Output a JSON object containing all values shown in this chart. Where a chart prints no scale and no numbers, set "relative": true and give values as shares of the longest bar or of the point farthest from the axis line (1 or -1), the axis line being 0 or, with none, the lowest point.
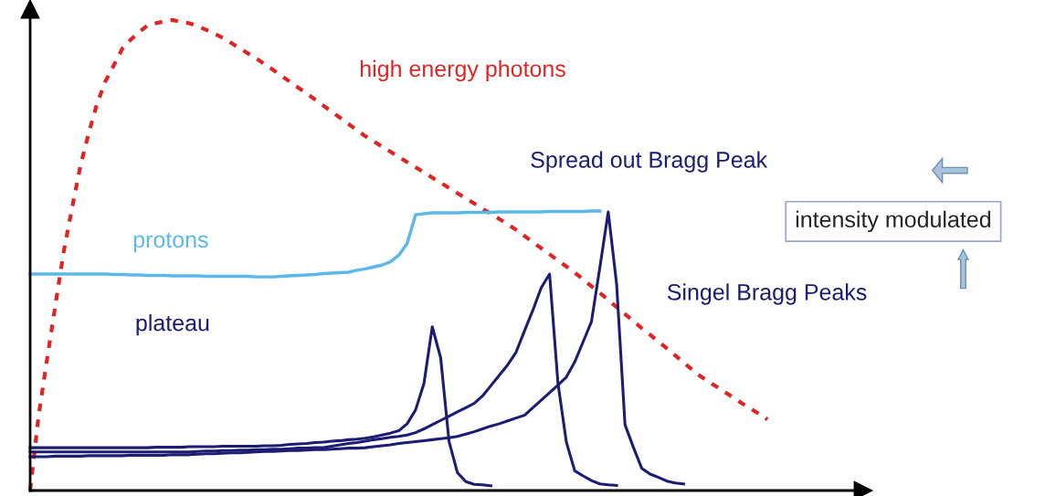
{
  "chart_data": {
    "type": "line",
    "relative": true,
    "annotations": [
      "Spread out Bragg Peak",
      "Singel Bragg Peaks",
      "plateau",
      "intensity modulated"
    ],
    "categories": [
      null,
      null,
      null,
      null,
      null,
      null,
      null,
      null,
      null,
      null,
      null,
      null,
      null,
      null,
      null,
      null,
      null,
      null,
      null,
      null,
      null,
      null,
      null,
      null,
      null,
      null,
      null,
      null,
      null,
      null,
      null,
      null,
      null,
      null,
      null,
      null,
      null,
      null,
      null,
      null,
      null,
      null,
      null,
      null,
      null,
      null,
      null,
      null,
      null,
      null,
      null,
      null,
      null,
      null,
      null,
      null,
      null,
      null,
      null,
      null,
      null,
      null,
      null,
      null,
      null,
      null,
      null,
      null,
      null,
      null,
      null,
      null,
      null,
      null,
      null,
      null,
      null,
      null,
      null,
      null,
      null,
      null,
      null,
      null,
      null,
      null,
      null,
      null,
      null
    ],
    "series": [
      {
        "name": "high energy photons",
        "color": "#e02424",
        "line_style": "dashed",
        "values": [
          0,
          0.157,
          0.277,
          0.392,
          0.507,
          0.6,
          0.69,
          0.76,
          0.823,
          0.87,
          0.904,
          0.939,
          0.958,
          0.974,
          0.988,
          0.993,
          0.997,
          1.0,
          0.996,
          0.993,
          0.987,
          0.979,
          0.971,
          0.962,
          0.951,
          0.94,
          0.929,
          0.918,
          0.906,
          0.894,
          0.881,
          0.869,
          0.856,
          0.844,
          0.831,
          0.818,
          0.805,
          0.792,
          0.779,
          0.766,
          0.753,
          0.742,
          0.731,
          0.72,
          0.709,
          0.698,
          0.687,
          0.676,
          0.665,
          0.654,
          0.643,
          0.632,
          0.621,
          0.61,
          0.599,
          0.588,
          0.577,
          0.566,
          0.554,
          0.541,
          0.528,
          0.515,
          0.502,
          0.489,
          0.476,
          0.463,
          0.449,
          0.434,
          0.42,
          0.405,
          0.39,
          0.375,
          0.36,
          0.345,
          0.331,
          0.316,
          0.302,
          0.287,
          0.272,
          0.257,
          0.243,
          0.231,
          0.22,
          0.208,
          0.197,
          0.185,
          0.174,
          0.163,
          0.151
        ]
      },
      {
        "name": "protons",
        "color": "#5bb8e8",
        "line_style": "solid",
        "values": [
          0.46,
          0.46,
          0.46,
          0.46,
          0.46,
          0.46,
          0.46,
          0.46,
          0.46,
          0.46,
          0.459,
          0.459,
          0.458,
          0.458,
          0.457,
          0.457,
          0.457,
          0.456,
          0.456,
          0.456,
          0.456,
          0.455,
          0.455,
          0.455,
          0.455,
          0.455,
          0.455,
          0.454,
          0.454,
          0.454,
          0.455,
          0.456,
          0.457,
          0.458,
          0.459,
          0.461,
          0.462,
          0.463,
          0.464,
          0.468,
          0.471,
          0.475,
          0.479,
          0.486,
          0.5,
          0.525,
          0.586,
          0.588,
          0.59,
          0.59,
          0.59,
          0.59,
          0.591,
          0.591,
          0.591,
          0.591,
          0.592,
          0.592,
          0.592,
          0.592,
          0.592,
          0.592,
          0.593,
          0.593,
          0.593,
          0.593,
          0.593,
          0.594,
          0.594,
          null,
          null,
          null,
          null,
          null,
          null,
          null,
          null,
          null,
          null,
          null,
          null,
          null,
          null,
          null,
          null,
          null,
          null,
          null,
          null
        ]
      },
      {
        "color": "#1c1c72",
        "line_style": "solid",
        "values": [
          0.091,
          0.091,
          0.091,
          0.091,
          0.091,
          0.091,
          0.091,
          0.091,
          0.091,
          0.091,
          0.091,
          0.091,
          0.091,
          0.091,
          0.091,
          0.092,
          0.092,
          0.092,
          0.092,
          0.093,
          0.093,
          0.093,
          0.093,
          0.094,
          0.094,
          0.094,
          0.094,
          0.094,
          0.095,
          0.095,
          0.096,
          0.098,
          0.099,
          0.1,
          0.102,
          0.103,
          0.105,
          0.106,
          0.108,
          0.109,
          0.111,
          0.114,
          0.118,
          0.122,
          0.127,
          0.142,
          0.171,
          0.227,
          0.348,
          0.282,
          0.104,
          0.038,
          0.019,
          0.013,
          0.012,
          0.01,
          null,
          null,
          null,
          null,
          null,
          null,
          null,
          null,
          null,
          null,
          null,
          null,
          null,
          null,
          null,
          null,
          null,
          null,
          null,
          null,
          null,
          null,
          null,
          null,
          null,
          null,
          null,
          null,
          null,
          null,
          null,
          null,
          null
        ]
      },
      {
        "color": "#1c1c72",
        "line_style": "solid",
        "values": [
          0.082,
          0.082,
          0.082,
          0.082,
          0.082,
          0.082,
          0.082,
          0.082,
          0.082,
          0.082,
          0.082,
          0.082,
          0.082,
          0.082,
          0.082,
          0.082,
          0.082,
          0.082,
          0.082,
          0.082,
          0.083,
          0.084,
          0.084,
          0.085,
          0.085,
          0.086,
          0.086,
          0.087,
          0.087,
          0.088,
          0.088,
          0.089,
          0.09,
          0.09,
          0.091,
          0.091,
          0.094,
          0.097,
          0.1,
          0.102,
          0.105,
          0.108,
          0.11,
          0.113,
          0.115,
          0.118,
          0.123,
          0.131,
          0.14,
          0.149,
          0.158,
          0.167,
          0.176,
          0.185,
          0.201,
          0.223,
          0.245,
          0.267,
          0.294,
          0.339,
          0.383,
          0.431,
          0.46,
          0.228,
          0.103,
          0.042,
          0.031,
          0.021,
          0.014,
          0.012,
          0.011,
          null,
          null,
          null,
          null,
          null,
          null,
          null,
          null,
          null,
          null,
          null,
          null,
          null,
          null,
          null,
          null,
          null,
          null
        ]
      },
      {
        "color": "#1c1c72",
        "line_style": "solid",
        "values": [
          0.072,
          0.072,
          0.072,
          0.073,
          0.073,
          0.073,
          0.073,
          0.074,
          0.074,
          0.074,
          0.074,
          0.074,
          0.075,
          0.075,
          0.075,
          0.075,
          0.075,
          0.076,
          0.076,
          0.076,
          0.077,
          0.078,
          0.078,
          0.079,
          0.08,
          0.08,
          0.081,
          0.082,
          0.083,
          0.083,
          0.084,
          0.085,
          0.085,
          0.086,
          0.087,
          0.087,
          0.088,
          0.089,
          0.09,
          0.09,
          0.091,
          0.093,
          0.095,
          0.097,
          0.1,
          0.102,
          0.104,
          0.106,
          0.108,
          0.11,
          0.112,
          0.115,
          0.12,
          0.125,
          0.131,
          0.137,
          0.142,
          0.148,
          0.154,
          0.16,
          0.176,
          0.192,
          0.208,
          0.224,
          0.241,
          0.273,
          0.316,
          0.359,
          0.474,
          0.592,
          0.439,
          0.14,
          0.092,
          0.047,
          0.035,
          0.028,
          0.02,
          0.016,
          0.014,
          null,
          null,
          null,
          null,
          null,
          null,
          null,
          null,
          null,
          null
        ]
      }
    ]
  }
}
